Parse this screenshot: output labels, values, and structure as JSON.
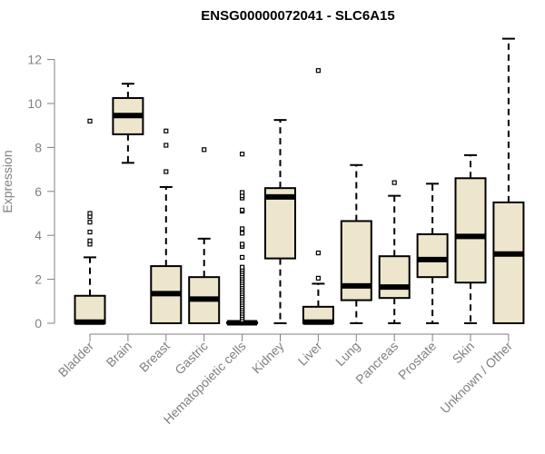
{
  "chart_data": {
    "type": "boxplot",
    "title": "ENSG00000072041 - SLC6A15",
    "xlabel": "",
    "ylabel": "Expression",
    "ylim": [
      0,
      12.6
    ],
    "yticks": [
      0,
      2,
      4,
      6,
      8,
      10,
      12
    ],
    "box_fill": "#ede6cc",
    "box_stroke": "#000000",
    "axis_color": "#808080",
    "categories": [
      "Bladder",
      "Brain",
      "Breast",
      "Gastric",
      "Hematopoietic cells",
      "Kidney",
      "Liver",
      "Lung",
      "Pancreas",
      "Prostate",
      "Skin",
      "Unknown / Other"
    ],
    "boxes": [
      {
        "name": "Bladder",
        "whisker_low": 0,
        "q1": 0,
        "median": 0.05,
        "q3": 1.25,
        "whisker_high": 3.0,
        "outliers": [
          3.6,
          3.75,
          4.15,
          4.6,
          4.85,
          5.0,
          9.2
        ]
      },
      {
        "name": "Brain",
        "whisker_low": 7.3,
        "q1": 8.6,
        "median": 9.45,
        "q3": 10.25,
        "whisker_high": 10.9,
        "outliers": []
      },
      {
        "name": "Breast",
        "whisker_low": 0,
        "q1": 0,
        "median": 1.35,
        "q3": 2.6,
        "whisker_high": 6.2,
        "outliers": [
          6.9,
          8.1,
          8.75
        ]
      },
      {
        "name": "Gastric",
        "whisker_low": 0,
        "q1": 0,
        "median": 1.1,
        "q3": 2.1,
        "whisker_high": 3.85,
        "outliers": [
          7.9
        ]
      },
      {
        "name": "Hematopoietic cells",
        "whisker_low": 0,
        "q1": 0,
        "median": 0.02,
        "q3": 0.05,
        "whisker_high": 0.1,
        "outliers": [
          0.15,
          0.25,
          0.35,
          0.45,
          0.55,
          0.65,
          0.75,
          0.85,
          0.95,
          1.05,
          1.15,
          1.25,
          1.35,
          1.45,
          1.55,
          1.65,
          1.75,
          1.85,
          1.95,
          2.05,
          2.15,
          2.25,
          2.35,
          2.45,
          2.55,
          3.0,
          3.5,
          3.6,
          4.1,
          4.3,
          5.1,
          5.15,
          5.7,
          5.8,
          5.95,
          7.7
        ]
      },
      {
        "name": "Kidney",
        "whisker_low": 0,
        "q1": 2.95,
        "median": 5.75,
        "q3": 6.15,
        "whisker_high": 9.25,
        "outliers": []
      },
      {
        "name": "Liver",
        "whisker_low": 0,
        "q1": 0,
        "median": 0.05,
        "q3": 0.75,
        "whisker_high": 1.8,
        "outliers": [
          2.05,
          3.2,
          11.5
        ]
      },
      {
        "name": "Lung",
        "whisker_low": 0,
        "q1": 1.05,
        "median": 1.7,
        "q3": 4.65,
        "whisker_high": 7.2,
        "outliers": []
      },
      {
        "name": "Pancreas",
        "whisker_low": 0,
        "q1": 1.15,
        "median": 1.65,
        "q3": 3.05,
        "whisker_high": 5.8,
        "outliers": [
          6.4
        ]
      },
      {
        "name": "Prostate",
        "whisker_low": 0,
        "q1": 2.1,
        "median": 2.9,
        "q3": 4.05,
        "whisker_high": 6.35,
        "outliers": []
      },
      {
        "name": "Skin",
        "whisker_low": 0,
        "q1": 1.85,
        "median": 3.95,
        "q3": 6.6,
        "whisker_high": 7.65,
        "outliers": []
      },
      {
        "name": "Unknown / Other",
        "whisker_low": 0,
        "q1": 0,
        "median": 3.15,
        "q3": 5.5,
        "whisker_high": 12.95,
        "outliers": []
      }
    ]
  }
}
